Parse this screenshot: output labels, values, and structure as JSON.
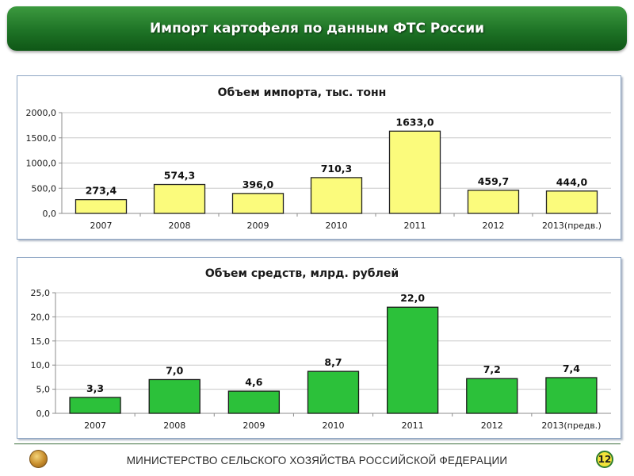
{
  "header": {
    "title": "Импорт картофеля по данным ФТС России"
  },
  "chart_data": [
    {
      "type": "bar",
      "title": "Объем импорта, тыс. тонн",
      "categories": [
        "2007",
        "2008",
        "2009",
        "2010",
        "2011",
        "2012",
        "2013(предв.)"
      ],
      "values": [
        273.4,
        574.3,
        396.0,
        710.3,
        1633.0,
        459.7,
        444.0
      ],
      "value_labels": [
        "273,4",
        "574,3",
        "396,0",
        "710,3",
        "1633,0",
        "459,7",
        "444,0"
      ],
      "yticks": [
        "0,0",
        "500,0",
        "1000,0",
        "1500,0",
        "2000,0"
      ],
      "ylim": [
        0,
        2000
      ],
      "grid": true,
      "bar_color": "#fbfb7c",
      "bar_edge_color": "#222222"
    },
    {
      "type": "bar",
      "title": "Объем средств, млрд. рублей",
      "categories": [
        "2007",
        "2008",
        "2009",
        "2010",
        "2011",
        "2012",
        "2013(предв.)"
      ],
      "values": [
        3.3,
        7.0,
        4.6,
        8.7,
        22.0,
        7.2,
        7.4
      ],
      "value_labels": [
        "3,3",
        "7,0",
        "4,6",
        "8,7",
        "22,0",
        "7,2",
        "7,4"
      ],
      "yticks": [
        "0,0",
        "5,0",
        "10,0",
        "15,0",
        "20,0",
        "25,0"
      ],
      "ylim": [
        0,
        25
      ],
      "grid": true,
      "bar_color": "#2cc13a",
      "bar_edge_color": "#1a1a1a"
    }
  ],
  "footer": {
    "ministry": "МИНИСТЕРСТВО СЕЛЬСКОГО ХОЗЯЙСТВА РОССИЙСКОЙ ФЕДЕРАЦИИ",
    "page_number": "12",
    "emblem_icon": "ministry-emblem-icon"
  }
}
